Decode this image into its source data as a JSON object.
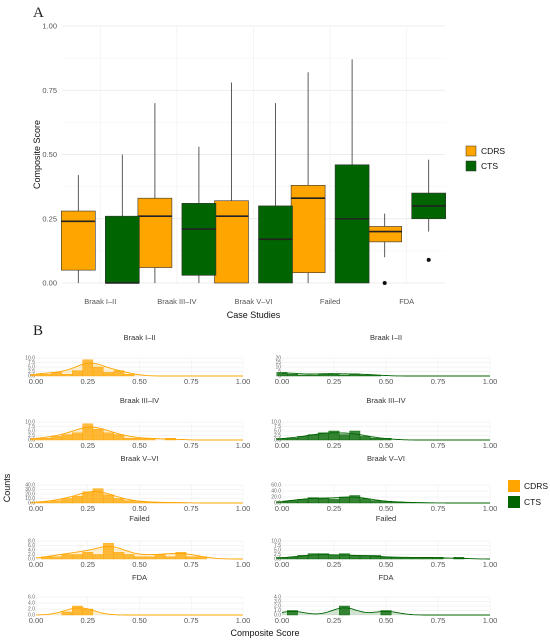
{
  "panel_a_label": "A",
  "panel_b_label": "B",
  "colors": {
    "CDRS": "#ffa500",
    "CTS": "#006400"
  },
  "chart_data": [
    {
      "type": "box",
      "xlabel": "Case Studies",
      "ylabel": "Composite Score",
      "ylim": [
        0,
        1
      ],
      "yticks": [
        "0.00",
        "0.25",
        "0.50",
        "0.75",
        "1.00"
      ],
      "grid": true,
      "legend": {
        "placement": "right",
        "entries": [
          "CDRS",
          "CTS"
        ]
      },
      "categories": [
        "Braak I–II",
        "Braak III–IV",
        "Braak V–VI",
        "Failed",
        "FDA"
      ],
      "series": [
        {
          "name": "CDRS",
          "boxes": [
            {
              "min": 0.0,
              "q1": 0.05,
              "median": 0.24,
              "q3": 0.28,
              "max": 0.42,
              "outliers": []
            },
            {
              "min": 0.0,
              "q1": 0.06,
              "median": 0.26,
              "q3": 0.33,
              "max": 0.7,
              "outliers": []
            },
            {
              "min": 0.0,
              "q1": 0.0,
              "median": 0.26,
              "q3": 0.32,
              "max": 0.78,
              "outliers": []
            },
            {
              "min": 0.0,
              "q1": 0.04,
              "median": 0.33,
              "q3": 0.38,
              "max": 0.82,
              "outliers": []
            },
            {
              "min": 0.1,
              "q1": 0.16,
              "median": 0.2,
              "q3": 0.22,
              "max": 0.27,
              "outliers": [
                0.0
              ]
            }
          ]
        },
        {
          "name": "CTS",
          "boxes": [
            {
              "min": 0.0,
              "q1": 0.0,
              "median": 0.0,
              "q3": 0.26,
              "max": 0.5,
              "outliers": []
            },
            {
              "min": 0.0,
              "q1": 0.03,
              "median": 0.21,
              "q3": 0.31,
              "max": 0.53,
              "outliers": []
            },
            {
              "min": 0.0,
              "q1": 0.0,
              "median": 0.17,
              "q3": 0.3,
              "max": 0.7,
              "outliers": []
            },
            {
              "min": 0.0,
              "q1": 0.0,
              "median": 0.25,
              "q3": 0.46,
              "max": 0.87,
              "outliers": []
            },
            {
              "min": 0.2,
              "q1": 0.25,
              "median": 0.3,
              "q3": 0.35,
              "max": 0.48,
              "outliers": [
                0.09
              ]
            }
          ]
        }
      ]
    },
    {
      "type": "histogram-facets",
      "xlabel": "Composite Score",
      "ylabel": "Counts",
      "xticks": [
        "0.00",
        "0.25",
        "0.50",
        "0.75",
        "1.00"
      ],
      "legend": {
        "placement": "right",
        "entries": [
          "CDRS",
          "CTS"
        ]
      },
      "bin_centers": [
        0.0,
        0.05,
        0.1,
        0.15,
        0.2,
        0.25,
        0.3,
        0.35,
        0.4,
        0.45,
        0.5,
        0.55,
        0.6,
        0.65,
        0.7,
        0.75,
        0.8,
        0.85,
        0.9,
        0.95,
        1.0
      ],
      "facets": [
        {
          "title": "Braak I–II",
          "series": "CDRS",
          "yticks": [
            "0.0",
            "2.5",
            "5.0",
            "7.5",
            "10.0"
          ],
          "ymax": 10,
          "counts": [
            1,
            1,
            2,
            1,
            3,
            9,
            5,
            2,
            3,
            1,
            0,
            0,
            0,
            0,
            0,
            0,
            0,
            0,
            0,
            0,
            0
          ]
        },
        {
          "title": "Braak I–II",
          "series": "CTS",
          "yticks": [
            "0",
            "5",
            "10",
            "15",
            "20"
          ],
          "ymax": 20,
          "counts": [
            4,
            2,
            1,
            1,
            2,
            2,
            1,
            2,
            1,
            1,
            0,
            0,
            0,
            0,
            0,
            0,
            0,
            0,
            0,
            0,
            0
          ]
        },
        {
          "title": "Braak III–IV",
          "series": "CDRS",
          "yticks": [
            "0.0",
            "2.5",
            "5.0",
            "7.5",
            "10.0"
          ],
          "ymax": 10,
          "counts": [
            1,
            1,
            2,
            3,
            4,
            9,
            6,
            4,
            3,
            1,
            1,
            1,
            0,
            1,
            0,
            0,
            0,
            0,
            0,
            0,
            0
          ]
        },
        {
          "title": "Braak III–IV",
          "series": "CTS",
          "yticks": [
            "0.0",
            "2.5",
            "5.0",
            "7.5",
            "10.0"
          ],
          "ymax": 10,
          "counts": [
            1,
            1,
            2,
            3,
            4,
            5,
            3,
            5,
            2,
            1,
            1,
            0,
            0,
            0,
            0,
            0,
            0,
            0,
            0,
            0,
            0
          ]
        },
        {
          "title": "Braak V–VI",
          "series": "CDRS",
          "yticks": [
            "0.0",
            "10.0",
            "20.0",
            "30.0",
            "40.0"
          ],
          "ymax": 40,
          "counts": [
            2,
            3,
            5,
            10,
            15,
            25,
            32,
            18,
            10,
            5,
            3,
            2,
            1,
            1,
            1,
            0,
            0,
            0,
            0,
            0,
            0
          ]
        },
        {
          "title": "Braak V–VI",
          "series": "CTS",
          "yticks": [
            "0.0",
            "20.0",
            "40.0",
            "60.0"
          ],
          "ymax": 60,
          "counts": [
            5,
            8,
            12,
            18,
            15,
            12,
            20,
            25,
            14,
            8,
            5,
            3,
            2,
            1,
            1,
            0,
            0,
            0,
            0,
            0,
            0
          ]
        },
        {
          "title": "Failed",
          "series": "CDRS",
          "yticks": [
            "0.0",
            "2.0",
            "4.0",
            "6.0",
            "8.0"
          ],
          "ymax": 8,
          "counts": [
            0,
            1,
            1,
            2,
            2,
            3,
            2,
            7,
            3,
            2,
            1,
            1,
            2,
            1,
            3,
            1,
            1,
            0,
            0,
            0,
            0
          ]
        },
        {
          "title": "Failed",
          "series": "CTS",
          "yticks": [
            "0.0",
            "2.5",
            "5.0",
            "7.5",
            "10.0"
          ],
          "ymax": 10,
          "counts": [
            1,
            1,
            2,
            3,
            3,
            2,
            3,
            2,
            2,
            2,
            1,
            1,
            1,
            1,
            1,
            1,
            0,
            1,
            0,
            0,
            0
          ]
        },
        {
          "title": "FDA",
          "series": "CDRS",
          "yticks": [
            "0.0",
            "2.0",
            "4.0",
            "6.0"
          ],
          "ymax": 6,
          "counts": [
            0,
            0,
            0,
            1,
            3,
            2,
            0,
            0,
            0,
            0,
            0,
            0,
            0,
            0,
            0,
            0,
            0,
            0,
            0,
            0,
            0
          ]
        },
        {
          "title": "FDA",
          "series": "CTS",
          "yticks": [
            "0.0",
            "1.0",
            "2.0",
            "3.0",
            "4.0"
          ],
          "ymax": 4,
          "counts": [
            0,
            1,
            0,
            0,
            0,
            0,
            2,
            0,
            0,
            0,
            1,
            0,
            0,
            0,
            0,
            0,
            0,
            0,
            0,
            0,
            0
          ]
        }
      ]
    }
  ]
}
